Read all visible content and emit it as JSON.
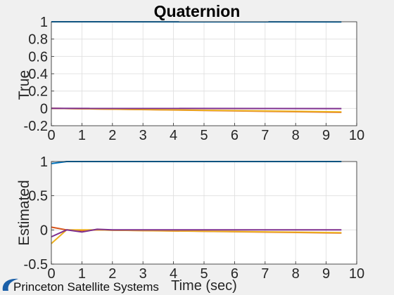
{
  "chart_data": [
    {
      "type": "line",
      "title": "Quaternion",
      "ylabel": "True",
      "xlabel": "",
      "xlim": [
        0,
        10
      ],
      "ylim": [
        -0.2,
        1
      ],
      "xticks": [
        "0",
        "1",
        "2",
        "3",
        "4",
        "5",
        "6",
        "7",
        "8",
        "9",
        "10"
      ],
      "yticks": [
        "-0.2",
        "0",
        "0.2",
        "0.4",
        "0.6",
        "0.8",
        "1"
      ],
      "grid": true,
      "x": [
        0,
        9.5
      ],
      "series": [
        {
          "color": "#0072BD",
          "values": [
            1.0,
            0.998
          ]
        },
        {
          "color": "#D95319",
          "values": [
            0.0,
            -0.045
          ]
        },
        {
          "color": "#EDB120",
          "values": [
            0.0,
            -0.04
          ]
        },
        {
          "color": "#7E2F8E",
          "values": [
            0.0,
            -0.002
          ]
        }
      ]
    },
    {
      "type": "line",
      "title": "",
      "ylabel": "Estimated",
      "xlabel": "Time (sec)",
      "xlim": [
        0,
        10
      ],
      "ylim": [
        -0.5,
        1
      ],
      "xticks": [
        "0",
        "1",
        "2",
        "3",
        "4",
        "5",
        "6",
        "7",
        "8",
        "9",
        "10"
      ],
      "yticks": [
        "-0.5",
        "0",
        "0.5",
        "1"
      ],
      "grid": true,
      "series": [
        {
          "color": "#0072BD",
          "x": [
            0,
            0.5,
            1,
            9.5
          ],
          "values": [
            0.97,
            1.0,
            1.0,
            1.0
          ]
        },
        {
          "color": "#D95319",
          "x": [
            0,
            0.5,
            1,
            1.5,
            2,
            9.5
          ],
          "values": [
            0.04,
            0.0,
            -0.01,
            0.0,
            -0.005,
            -0.045
          ]
        },
        {
          "color": "#EDB120",
          "x": [
            0,
            0.5,
            1,
            1.5,
            2,
            9.5
          ],
          "values": [
            -0.2,
            0.0,
            0.0,
            0.0,
            -0.005,
            -0.04
          ]
        },
        {
          "color": "#7E2F8E",
          "x": [
            0,
            0.5,
            1,
            1.5,
            2,
            9.5
          ],
          "values": [
            -0.1,
            0.0,
            -0.03,
            0.01,
            0.0,
            0.0
          ]
        }
      ]
    }
  ],
  "watermark": {
    "text": "Princeton Satellite Systems",
    "logo_icon": "pss-swoosh-icon"
  }
}
